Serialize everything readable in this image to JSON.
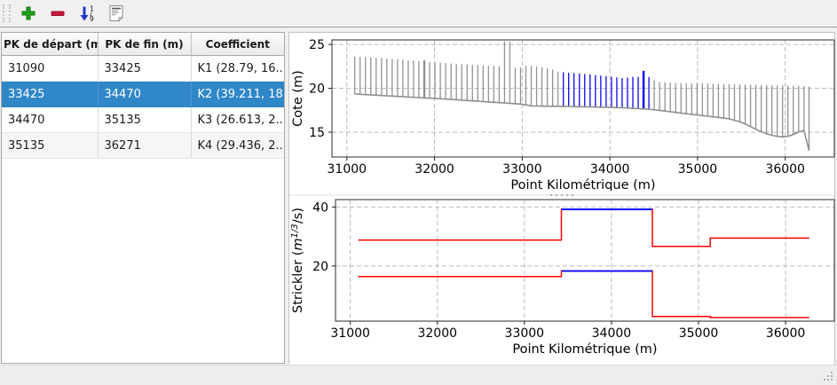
{
  "toolbar": {
    "buttons": [
      {
        "name": "add",
        "icon": "plus-icon"
      },
      {
        "name": "remove",
        "icon": "minus-icon"
      },
      {
        "name": "sort",
        "icon": "sort-numeric-icon"
      },
      {
        "name": "edit",
        "icon": "document-icon"
      }
    ]
  },
  "colors": {
    "selected_row": "#3087c8",
    "section_gray": "#8f8f8f",
    "section_blue": "#0000ee",
    "step_red": "#ff0000",
    "step_blue": "#0000ff",
    "plus_green": "#1fa11f",
    "minus_red": "#c41a38",
    "arrow_blue": "#2338c8"
  },
  "table": {
    "columns": [
      "PK de départ (m)",
      "PK de fin (m)",
      "Coefficient"
    ],
    "rows": [
      {
        "pk_start": "31090",
        "pk_end": "33425",
        "coefficient": "K1 (28.79, 16....",
        "selected": false
      },
      {
        "pk_start": "33425",
        "pk_end": "34470",
        "coefficient": "K2 (39.211, 18...",
        "selected": true
      },
      {
        "pk_start": "34470",
        "pk_end": "35135",
        "coefficient": "K3 (26.613, 2....",
        "selected": false
      },
      {
        "pk_start": "35135",
        "pk_end": "36271",
        "coefficient": "K4 (29.436, 2....",
        "selected": false
      }
    ]
  },
  "chart_data": [
    {
      "type": "line",
      "subtype": "cross-section-stems",
      "xlabel": "Point Kilométrique (m)",
      "ylabel": "Cote (m)",
      "xticks": [
        31000,
        32000,
        33000,
        34000,
        35000,
        36000
      ],
      "yticks": [
        15,
        20,
        25
      ],
      "xlim": [
        30830,
        36560
      ],
      "ylim": [
        12.17,
        25.52
      ],
      "grid": true,
      "highlight_range": [
        33425,
        34470
      ],
      "note": "each [pk, bed_cote, top_cote(, thick)] is a vertical stem; bed cotes are joined as the profile line; stems inside highlight_range are blue",
      "sections": [
        [
          31090,
          19.35,
          23.65
        ],
        [
          31151,
          19.32,
          23.61
        ],
        [
          31212,
          19.28,
          23.57
        ],
        [
          31273,
          19.25,
          23.52
        ],
        [
          31334,
          19.22,
          23.48
        ],
        [
          31395,
          19.18,
          23.44
        ],
        [
          31456,
          19.15,
          23.4
        ],
        [
          31517,
          19.12,
          23.36
        ],
        [
          31578,
          19.08,
          23.32
        ],
        [
          31639,
          19.05,
          23.27
        ],
        [
          31700,
          19.01,
          23.21
        ],
        [
          31761,
          18.98,
          23.16
        ],
        [
          31822,
          18.95,
          23.11
        ],
        [
          31883,
          18.91,
          23.2,
          2
        ],
        [
          31944,
          18.88,
          23.0
        ],
        [
          32005,
          18.85,
          22.95
        ],
        [
          32066,
          18.81,
          22.91
        ],
        [
          32127,
          18.77,
          22.87
        ],
        [
          32188,
          18.73,
          22.83
        ],
        [
          32249,
          18.69,
          22.78
        ],
        [
          32310,
          18.65,
          22.74
        ],
        [
          32371,
          18.61,
          22.71
        ],
        [
          32432,
          18.57,
          22.68
        ],
        [
          32493,
          18.53,
          22.64
        ],
        [
          32554,
          18.49,
          22.61
        ],
        [
          32615,
          18.45,
          22.57
        ],
        [
          32676,
          18.41,
          22.54
        ],
        [
          32737,
          18.37,
          22.5
        ],
        [
          32798,
          18.33,
          25.35
        ],
        [
          32859,
          18.29,
          25.32
        ],
        [
          32920,
          18.25,
          22.36
        ],
        [
          32981,
          18.21,
          22.39
        ],
        [
          33042,
          18.12,
          22.58
        ],
        [
          33103,
          18.0,
          22.55
        ],
        [
          33164,
          17.99,
          22.49
        ],
        [
          33225,
          17.98,
          22.4
        ],
        [
          33286,
          17.97,
          22.27
        ],
        [
          33347,
          17.96,
          22.13
        ],
        [
          33408,
          17.95,
          21.91
        ],
        [
          33469,
          17.94,
          21.82
        ],
        [
          33530,
          17.93,
          21.77
        ],
        [
          33591,
          17.91,
          21.73
        ],
        [
          33652,
          17.9,
          21.69
        ],
        [
          33713,
          17.89,
          21.64
        ],
        [
          33774,
          17.87,
          21.58
        ],
        [
          33835,
          17.86,
          21.52
        ],
        [
          33896,
          17.85,
          21.46
        ],
        [
          33957,
          17.83,
          21.39
        ],
        [
          34018,
          17.82,
          21.33
        ],
        [
          34079,
          17.8,
          21.25
        ],
        [
          34140,
          17.78,
          21.16
        ],
        [
          34201,
          17.75,
          21.22
        ],
        [
          34262,
          17.71,
          21.3
        ],
        [
          34323,
          17.68,
          21.3
        ],
        [
          34384,
          17.65,
          22.0,
          2
        ],
        [
          34445,
          17.61,
          21.28
        ],
        [
          34506,
          17.56,
          20.88
        ],
        [
          34567,
          17.48,
          20.7
        ],
        [
          34628,
          17.41,
          20.68
        ],
        [
          34689,
          17.33,
          20.65
        ],
        [
          34750,
          17.26,
          20.62
        ],
        [
          34811,
          17.18,
          20.6
        ],
        [
          34872,
          17.11,
          20.58
        ],
        [
          34933,
          17.03,
          20.57
        ],
        [
          34994,
          16.96,
          20.55
        ],
        [
          35055,
          16.89,
          20.54
        ],
        [
          35116,
          16.82,
          20.52
        ],
        [
          35177,
          16.75,
          20.51
        ],
        [
          35238,
          16.68,
          20.49
        ],
        [
          35299,
          16.61,
          20.48
        ],
        [
          35360,
          16.52,
          20.46
        ],
        [
          35421,
          16.36,
          20.45
        ],
        [
          35482,
          16.2,
          20.43
        ],
        [
          35543,
          15.94,
          20.42
        ],
        [
          35604,
          15.63,
          20.4
        ],
        [
          35665,
          15.34,
          20.39
        ],
        [
          35726,
          15.07,
          20.38
        ],
        [
          35787,
          14.81,
          20.37
        ],
        [
          35848,
          14.65,
          20.35
        ],
        [
          35909,
          14.53,
          20.34
        ],
        [
          35970,
          14.47,
          20.33
        ],
        [
          36031,
          14.53,
          20.32
        ],
        [
          36092,
          14.74,
          20.31
        ],
        [
          36153,
          15.01,
          20.29
        ],
        [
          36214,
          15.21,
          20.27
        ],
        [
          36271,
          12.9,
          20.2
        ]
      ]
    },
    {
      "type": "line",
      "subtype": "step",
      "xlabel": "Point Kilométrique (m)",
      "ylabel": "Strickler (m^{1/3}/s)",
      "ylabel_parts": {
        "prefix": "Strickler (",
        "var": "m",
        "sup": "1/3",
        "suffix": "/s)"
      },
      "xticks": [
        31000,
        32000,
        33000,
        34000,
        35000,
        36000
      ],
      "yticks": [
        20,
        40
      ],
      "xlim": [
        30830,
        36560
      ],
      "ylim": [
        1.3,
        42.5
      ],
      "grid": true,
      "note": "two step curves (minor-bed and major-bed Strickler); selected segment K2 overplotted in blue",
      "segments": [
        {
          "name": "K1",
          "pk_start": 31090,
          "pk_end": 33425,
          "k_minor": 28.79,
          "k_major": 16.4,
          "selected": false
        },
        {
          "name": "K2",
          "pk_start": 33425,
          "pk_end": 34470,
          "k_minor": 39.211,
          "k_major": 18.3,
          "selected": true
        },
        {
          "name": "K3",
          "pk_start": 34470,
          "pk_end": 35135,
          "k_minor": 26.613,
          "k_major": 2.9,
          "selected": false
        },
        {
          "name": "K4",
          "pk_start": 35135,
          "pk_end": 36271,
          "k_minor": 29.436,
          "k_major": 2.5,
          "selected": false
        }
      ]
    }
  ]
}
